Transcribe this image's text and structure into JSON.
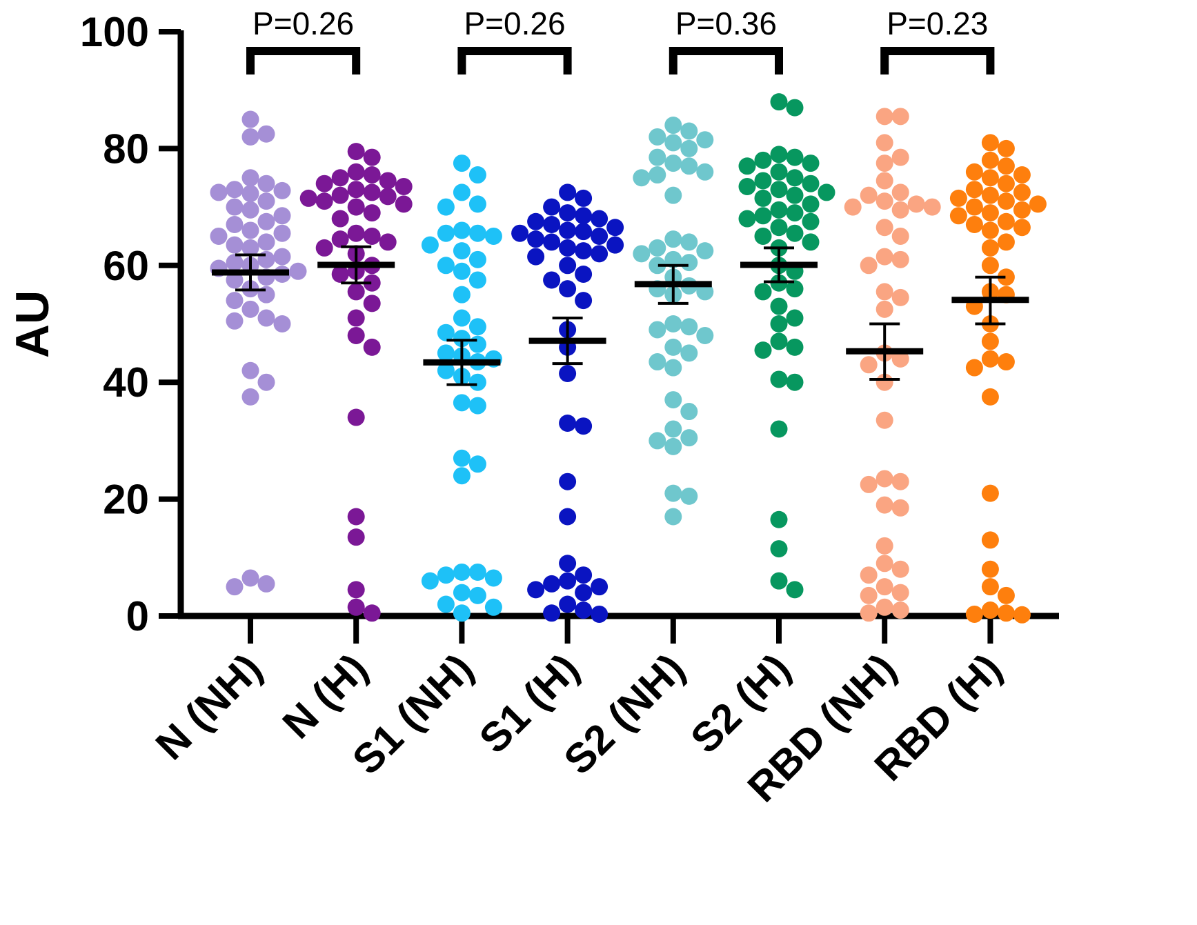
{
  "chart_data": {
    "type": "scatter",
    "ylabel": "AU",
    "xlabel": "",
    "ylim": [
      0,
      100
    ],
    "yticks": [
      0,
      20,
      40,
      60,
      80,
      100
    ],
    "grid": false,
    "categories": [
      "N (NH)",
      "N (H)",
      "S1 (NH)",
      "S1 (H)",
      "S2 (NH)",
      "S2 (H)",
      "RBD (NH)",
      "RBD (H)"
    ],
    "groups": [
      {
        "name": "N (NH)",
        "color": "#a58fd6",
        "mean": 58.8,
        "err_low": 55.8,
        "err_high": 61.8,
        "points": [
          85,
          82,
          82.5,
          75,
          74,
          72.8,
          73,
          72.5,
          72.3,
          71,
          70,
          69.5,
          68.5,
          67.5,
          67,
          66,
          65.5,
          65,
          64,
          63.5,
          63,
          61.5,
          61,
          60.5,
          60,
          59.5,
          59,
          58.5,
          58,
          57.5,
          56,
          55,
          54,
          52.5,
          51,
          50.5,
          50,
          42,
          40,
          37.5,
          6.5,
          5.5,
          5
        ]
      },
      {
        "name": "N (H)",
        "color": "#7b1896",
        "mean": 60.1,
        "err_low": 57,
        "err_high": 63.2,
        "points": [
          79.5,
          78.5,
          76,
          75.5,
          75,
          74.5,
          74,
          73.5,
          73,
          72.5,
          72,
          71.8,
          71.5,
          71,
          70.5,
          70,
          69,
          68,
          65.5,
          65,
          64.5,
          64,
          63,
          62,
          60,
          59,
          58.5,
          57,
          55.5,
          53.5,
          51,
          48,
          46,
          34,
          17,
          13.5,
          4.5,
          1.5,
          0.5
        ]
      },
      {
        "name": "S1 (NH)",
        "color": "#1ec1f7",
        "mean": 43.4,
        "err_low": 39.6,
        "err_high": 47.2,
        "points": [
          77.5,
          75.5,
          72.5,
          70.5,
          70,
          66,
          65.5,
          65.5,
          65,
          63.5,
          62.5,
          61,
          60,
          59,
          57.5,
          55,
          51,
          49.5,
          48.5,
          47.5,
          46.5,
          45,
          44.5,
          44,
          43.5,
          42,
          41,
          40,
          36.5,
          36,
          27,
          26,
          24,
          7.5,
          7.5,
          7,
          6.5,
          6,
          4,
          3.5,
          2,
          1.5,
          0.5
        ]
      },
      {
        "name": "S1 (H)",
        "color": "#0a14c1",
        "mean": 47.1,
        "err_low": 43.2,
        "err_high": 51,
        "points": [
          72.5,
          71.5,
          70,
          69,
          68.5,
          68,
          67.5,
          67,
          66.5,
          66,
          65.8,
          65.5,
          65,
          64.5,
          64,
          63.5,
          63,
          62.5,
          62,
          61.5,
          60,
          58.5,
          57.5,
          56,
          54,
          49,
          46,
          41.5,
          33,
          32.5,
          23,
          17,
          9,
          7,
          6,
          5.5,
          5,
          4.5,
          4,
          2,
          1,
          0.5,
          0.3
        ]
      },
      {
        "name": "S2 (NH)",
        "color": "#6fc7cd",
        "mean": 56.8,
        "err_low": 53.5,
        "err_high": 60,
        "points": [
          84,
          83,
          82,
          81.5,
          81,
          80,
          78.5,
          77.5,
          77,
          76,
          75.5,
          75,
          72,
          64.5,
          64,
          63,
          62.5,
          62,
          61,
          60.5,
          60,
          58,
          56.5,
          56,
          55.5,
          55,
          50,
          49.5,
          49,
          48,
          46,
          45,
          43.5,
          42.5,
          37,
          35,
          32,
          30.5,
          30,
          29,
          21,
          20.5,
          17
        ]
      },
      {
        "name": "S2 (H)",
        "color": "#07975f",
        "mean": 60.1,
        "err_low": 57.2,
        "err_high": 63,
        "points": [
          88,
          87,
          79,
          78.5,
          78,
          77.5,
          77,
          76,
          75,
          74.5,
          74,
          73.5,
          73,
          72.5,
          72,
          71.5,
          70.5,
          69.5,
          69,
          68.5,
          68,
          67.5,
          66.5,
          65.5,
          65,
          64,
          63,
          60,
          59,
          57,
          56,
          55.5,
          53,
          51,
          50,
          47,
          46,
          45.5,
          40.5,
          40,
          32,
          16.5,
          11.5,
          6,
          4.5
        ]
      },
      {
        "name": "RBD (NH)",
        "color": "#faa582",
        "mean": 45.3,
        "err_low": 40.5,
        "err_high": 50,
        "points": [
          85.5,
          85.5,
          81,
          78.5,
          77.5,
          74.5,
          72.5,
          72,
          71,
          70.5,
          70,
          70,
          69.5,
          66.5,
          65,
          61.5,
          61,
          60,
          55.5,
          54.5,
          52.5,
          45,
          44,
          43,
          40,
          33.5,
          23.5,
          23,
          22.5,
          19,
          18.5,
          12,
          9,
          8,
          7,
          5,
          4,
          3.5,
          1.5,
          1,
          0.5
        ]
      },
      {
        "name": "RBD (H)",
        "color": "#fe7f0d",
        "mean": 54.1,
        "err_low": 50,
        "err_high": 58,
        "points": [
          81,
          80,
          78,
          77,
          76,
          75.5,
          75,
          74,
          73,
          72.5,
          72,
          71.5,
          71,
          70.5,
          70,
          69.5,
          69,
          68.5,
          67.5,
          67,
          66.5,
          66,
          64,
          63,
          60,
          58,
          55.5,
          55,
          53,
          50,
          47,
          44,
          43.5,
          42.5,
          37.5,
          21,
          13,
          8,
          5,
          3.5,
          1,
          0.5,
          0.3,
          0.2
        ]
      }
    ],
    "comparisons": [
      {
        "pair": [
          0,
          1
        ],
        "label": "P=0.26"
      },
      {
        "pair": [
          2,
          3
        ],
        "label": "P=0.26"
      },
      {
        "pair": [
          4,
          5
        ],
        "label": "P=0.36"
      },
      {
        "pair": [
          6,
          7
        ],
        "label": "P=0.23"
      }
    ]
  }
}
